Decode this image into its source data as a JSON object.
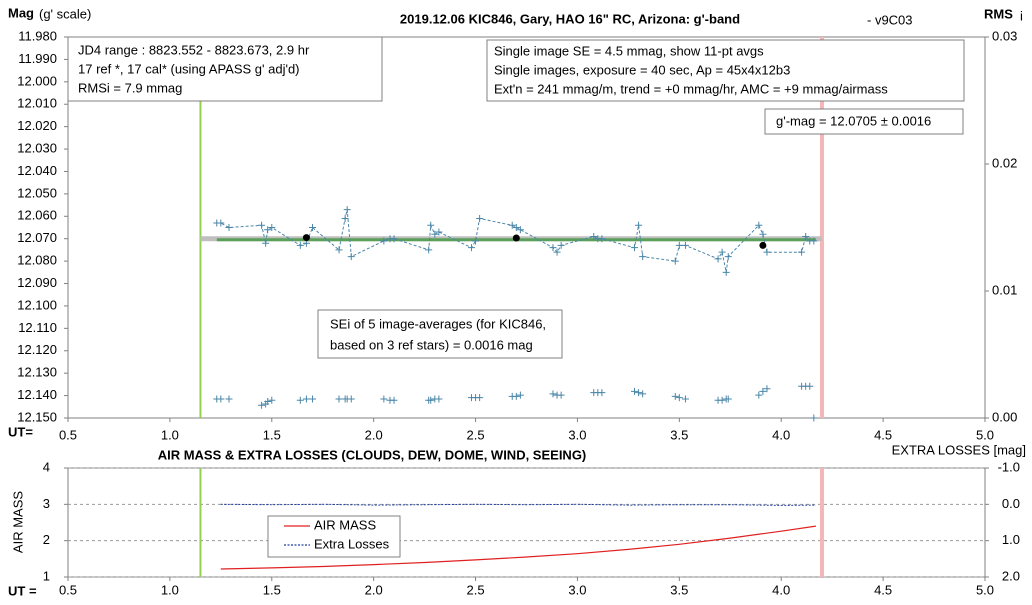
{
  "chart_data": [
    {
      "type": "line",
      "title": "2019.12.06 KIC846, Gary, HAO 16\" RC, Arizona: g'-band",
      "subtitle": "- v9C03",
      "ylabel": "Mag",
      "ylabel_note": "(g' scale)",
      "y2label": "RMS",
      "y2label_note": "i",
      "xlabel": "UT=",
      "xlim": [
        0.5,
        5.0
      ],
      "xticks": [
        0.5,
        {
          "value": 1,
          "label": "1.0"
        },
        1.5,
        {
          "value": 2,
          "label": "2.0"
        },
        2.5,
        {
          "value": 3,
          "label": "3.0"
        },
        3.5,
        {
          "value": 4,
          "label": "4.0"
        },
        4.5,
        {
          "value": 5,
          "label": "5.0"
        }
      ],
      "ylim": [
        12.15,
        11.98
      ],
      "yticks": [
        {
          "value": 11.98,
          "label": "11.980"
        },
        {
          "value": 11.99,
          "label": "11.990"
        },
        {
          "value": 12.0,
          "label": "12.000"
        },
        {
          "value": 12.01,
          "label": "12.010"
        },
        {
          "value": 12.02,
          "label": "12.020"
        },
        {
          "value": 12.03,
          "label": "12.030"
        },
        {
          "value": 12.04,
          "label": "12.040"
        },
        {
          "value": 12.05,
          "label": "12.050"
        },
        {
          "value": 12.06,
          "label": "12.060"
        },
        {
          "value": 12.07,
          "label": "12.070"
        },
        {
          "value": 12.08,
          "label": "12.080"
        },
        {
          "value": 12.09,
          "label": "12.090"
        },
        {
          "value": 12.1,
          "label": "12.100"
        },
        {
          "value": 12.11,
          "label": "12.110"
        },
        {
          "value": 12.12,
          "label": "12.120"
        },
        {
          "value": 12.13,
          "label": "12.130"
        },
        {
          "value": 12.14,
          "label": "12.140"
        },
        {
          "value": 12.15,
          "label": "12.150"
        }
      ],
      "y2lim": [
        0,
        0.03
      ],
      "y2ticks": [
        {
          "value": 0,
          "label": "0.00"
        },
        {
          "value": 0.01,
          "label": "0.01"
        },
        {
          "value": 0.02,
          "label": "0.02"
        },
        {
          "value": 0.03,
          "label": "0.03"
        }
      ],
      "grid": false,
      "vlines": [
        {
          "x": 1.15,
          "color": "#92d050"
        },
        {
          "x": 4.2,
          "color": "#f4b6b8"
        }
      ],
      "series": [
        {
          "style": "line",
          "color": "#bfbfbf",
          "x": [
            1.15,
            4.2
          ],
          "values": [
            12.07,
            12.07
          ]
        },
        {
          "style": "line",
          "color": "#5aa05a",
          "x": [
            1.23,
            4.17
          ],
          "values": [
            12.0705,
            12.0705
          ]
        },
        {
          "style": "line-plus",
          "color": "#4a86a8",
          "x": [
            1.23,
            1.25,
            1.29,
            1.45,
            1.47,
            1.48,
            1.5,
            1.64,
            1.67,
            1.7,
            1.83,
            1.86,
            1.87,
            1.89,
            2.05,
            2.08,
            2.1,
            2.27,
            2.28,
            2.3,
            2.32,
            2.48,
            2.5,
            2.52,
            2.68,
            2.7,
            2.72,
            2.88,
            2.9,
            2.92,
            3.08,
            3.1,
            3.12,
            3.28,
            3.3,
            3.32,
            3.48,
            3.5,
            3.53,
            3.69,
            3.71,
            3.73,
            3.74,
            3.89,
            3.91,
            3.93,
            4.1,
            4.12,
            4.14,
            4.16
          ],
          "values": [
            12.063,
            12.063,
            12.065,
            12.064,
            12.072,
            12.066,
            12.065,
            12.073,
            12.072,
            12.065,
            12.075,
            12.061,
            12.057,
            12.078,
            12.071,
            12.07,
            12.07,
            12.075,
            12.064,
            12.068,
            12.067,
            12.074,
            12.071,
            12.061,
            12.064,
            12.065,
            12.066,
            12.074,
            12.076,
            12.073,
            12.069,
            12.07,
            12.07,
            12.074,
            12.064,
            12.078,
            12.08,
            12.073,
            12.073,
            12.079,
            12.076,
            12.085,
            12.078,
            12.064,
            12.068,
            12.076,
            12.076,
            12.069,
            12.071,
            12.071
          ]
        },
        {
          "style": "plus",
          "color": "#4a86a8",
          "axis": "y2",
          "x": [
            1.23,
            1.25,
            1.29,
            1.45,
            1.47,
            1.48,
            1.5,
            1.64,
            1.67,
            1.7,
            1.83,
            1.86,
            1.87,
            1.89,
            2.05,
            2.08,
            2.1,
            2.27,
            2.28,
            2.3,
            2.32,
            2.48,
            2.5,
            2.52,
            2.68,
            2.7,
            2.72,
            2.88,
            2.9,
            2.92,
            3.08,
            3.1,
            3.12,
            3.28,
            3.3,
            3.32,
            3.48,
            3.5,
            3.53,
            3.69,
            3.71,
            3.73,
            3.74,
            3.89,
            3.91,
            3.93,
            4.1,
            4.12,
            4.14,
            4.16
          ],
          "values": [
            0.0015,
            0.0015,
            0.0015,
            0.001,
            0.0011,
            0.0013,
            0.0014,
            0.0014,
            0.0015,
            0.0015,
            0.0015,
            0.0015,
            0.0015,
            0.0015,
            0.0015,
            0.0014,
            0.0014,
            0.0014,
            0.0014,
            0.0015,
            0.0015,
            0.0016,
            0.0016,
            0.0016,
            0.0017,
            0.0017,
            0.0018,
            0.0019,
            0.0018,
            0.0018,
            0.002,
            0.002,
            0.002,
            0.0021,
            0.002,
            0.0019,
            0.0017,
            0.0016,
            0.0015,
            0.0014,
            0.0014,
            0.0015,
            0.0015,
            0.0018,
            0.0021,
            0.0023,
            0.0025,
            0.0025,
            0.0025,
            0.0
          ]
        },
        {
          "style": "dots",
          "color": "#000000",
          "x": [
            1.67,
            2.7,
            3.91
          ],
          "values": [
            12.0695,
            12.0697,
            12.073
          ]
        }
      ],
      "annotations": [
        [
          "JD4 range : 8823.552 - 8823.673,  2.9  hr",
          "17 ref *, 17 cal* (using APASS g' adj'd)",
          "RMSi = 7.9 mmag"
        ],
        [
          "Single image SE = 4.5 mmag, show  11-pt avgs",
          "Single images, exposure = 40 sec, Ap = 45x4x12b3",
          "Ext'n = 241 mmag/m, trend =  +0 mmag/hr, AMC = +9 mmag/airmass"
        ],
        [
          "g'-mag = 12.0705 ± 0.0016"
        ],
        [
          "SEi of 5 image-averages (for KIC846,",
          "based on 3 ref stars) = 0.0016 mag"
        ]
      ]
    },
    {
      "type": "line",
      "title": "AIR MASS & EXTRA LOSSES (CLOUDS, DEW, DOME, WIND, SEEING)",
      "ylabel": "AIR MASS",
      "y2label": "EXTRA LOSSES [mag]",
      "xlabel": "UT =",
      "xlim": [
        0.5,
        5.0
      ],
      "xticks": [
        0.5,
        {
          "value": 1,
          "label": "1.0"
        },
        1.5,
        {
          "value": 2,
          "label": "2.0"
        },
        2.5,
        {
          "value": 3,
          "label": "3.0"
        },
        3.5,
        {
          "value": 4,
          "label": "4.0"
        },
        4.5,
        {
          "value": 5,
          "label": "5.0"
        }
      ],
      "ylim": [
        1,
        4
      ],
      "yticks": [
        1,
        2,
        3,
        4
      ],
      "y2lim": [
        2.0,
        -1.0
      ],
      "y2ticks": [
        {
          "value": -1,
          "label": "-1.0"
        },
        {
          "value": 0,
          "label": "0.0"
        },
        {
          "value": 1,
          "label": "1.0"
        },
        {
          "value": 2,
          "label": "2.0"
        }
      ],
      "grid": true,
      "vlines": [
        {
          "x": 1.15,
          "color": "#92d050"
        },
        {
          "x": 4.2,
          "color": "#f4b6b8"
        }
      ],
      "series": [
        {
          "name": "AIR MASS",
          "style": "line",
          "color": "#e02020",
          "x": [
            1.25,
            1.5,
            1.75,
            2.0,
            2.25,
            2.5,
            2.75,
            3.0,
            3.25,
            3.5,
            3.75,
            4.0,
            4.17
          ],
          "values": [
            1.22,
            1.25,
            1.29,
            1.34,
            1.4,
            1.47,
            1.55,
            1.64,
            1.76,
            1.9,
            2.07,
            2.26,
            2.4
          ]
        },
        {
          "name": "Extra Losses",
          "style": "dotted",
          "color": "#1f3fa0",
          "axis": "y2",
          "x": [
            1.25,
            1.5,
            1.75,
            2.0,
            2.25,
            2.5,
            2.75,
            3.0,
            3.25,
            3.5,
            3.75,
            4.0,
            4.17
          ],
          "values": [
            0.0,
            0.01,
            0.0,
            0.02,
            0.01,
            0.0,
            0.01,
            0.0,
            0.02,
            0.01,
            0.01,
            0.03,
            0.02
          ]
        }
      ]
    }
  ]
}
